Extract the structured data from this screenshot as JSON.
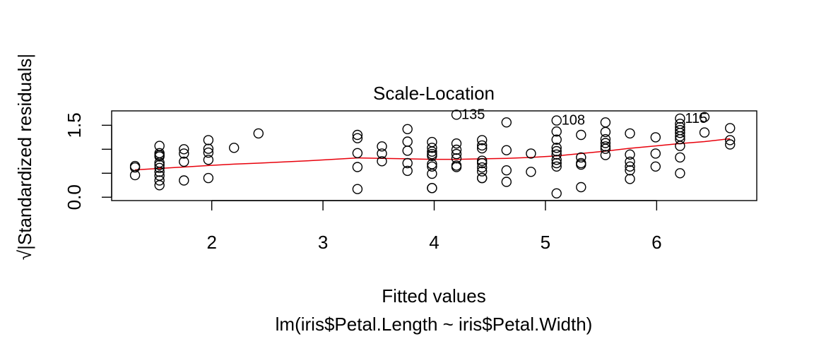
{
  "chart_data": {
    "type": "scatter",
    "title": "Scale-Location",
    "xlabel": "Fitted values",
    "subtitle": "lm(iris$Petal.Length ~ iris$Petal.Width)",
    "ylabel": "√|Standardized residuals|",
    "xlim": [
      1.1,
      6.9
    ],
    "ylim": [
      -0.07,
      1.8
    ],
    "xticks": [
      2,
      3,
      4,
      5,
      6
    ],
    "yticks": [
      0.0,
      0.5,
      1.0,
      1.5
    ],
    "ytick_labels": [
      "0.0",
      "",
      "",
      "1.5"
    ],
    "xtick_labels": [
      "2",
      "3",
      "4",
      "5",
      "6"
    ],
    "grid": false,
    "colors": {
      "points": "#000000",
      "smooth": "#e8000b"
    },
    "points": [
      [
        1.31,
        0.65
      ],
      [
        1.31,
        0.62
      ],
      [
        1.31,
        0.46
      ],
      [
        1.53,
        1.07
      ],
      [
        1.53,
        0.92
      ],
      [
        1.53,
        0.88
      ],
      [
        1.53,
        0.85
      ],
      [
        1.53,
        0.72
      ],
      [
        1.53,
        0.67
      ],
      [
        1.53,
        0.61
      ],
      [
        1.53,
        0.53
      ],
      [
        1.53,
        0.45
      ],
      [
        1.53,
        0.35
      ],
      [
        1.53,
        0.25
      ],
      [
        1.75,
        1.0
      ],
      [
        1.75,
        0.91
      ],
      [
        1.75,
        0.74
      ],
      [
        1.75,
        0.35
      ],
      [
        1.97,
        1.19
      ],
      [
        1.97,
        1.01
      ],
      [
        1.97,
        0.93
      ],
      [
        1.97,
        0.78
      ],
      [
        1.97,
        0.4
      ],
      [
        2.2,
        1.03
      ],
      [
        2.42,
        1.33
      ],
      [
        3.31,
        1.3
      ],
      [
        3.31,
        1.23
      ],
      [
        3.31,
        0.92
      ],
      [
        3.31,
        0.63
      ],
      [
        3.31,
        0.17
      ],
      [
        3.53,
        1.06
      ],
      [
        3.53,
        0.91
      ],
      [
        3.53,
        0.75
      ],
      [
        3.76,
        1.42
      ],
      [
        3.76,
        1.16
      ],
      [
        3.76,
        0.97
      ],
      [
        3.76,
        0.71
      ],
      [
        3.76,
        0.55
      ],
      [
        3.98,
        1.15
      ],
      [
        3.98,
        1.03
      ],
      [
        3.98,
        0.95
      ],
      [
        3.98,
        0.9
      ],
      [
        3.98,
        0.86
      ],
      [
        3.98,
        0.69
      ],
      [
        3.98,
        0.64
      ],
      [
        3.98,
        0.49
      ],
      [
        3.98,
        0.19
      ],
      [
        3.98,
        0.19
      ],
      [
        4.2,
        1.12
      ],
      [
        4.2,
        0.99
      ],
      [
        4.2,
        0.9
      ],
      [
        4.2,
        0.81
      ],
      [
        4.2,
        0.66
      ],
      [
        4.2,
        0.63
      ],
      [
        4.43,
        1.19
      ],
      [
        4.43,
        1.08
      ],
      [
        4.43,
        1.02
      ],
      [
        4.43,
        0.76
      ],
      [
        4.43,
        0.71
      ],
      [
        4.43,
        0.62
      ],
      [
        4.43,
        0.54
      ],
      [
        4.43,
        0.4
      ],
      [
        4.43,
        0.4
      ],
      [
        4.65,
        1.56
      ],
      [
        4.65,
        0.98
      ],
      [
        4.65,
        0.56
      ],
      [
        4.65,
        0.32
      ],
      [
        4.87,
        0.91
      ],
      [
        4.87,
        0.53
      ],
      [
        5.1,
        1.37
      ],
      [
        5.1,
        1.2
      ],
      [
        5.1,
        1.03
      ],
      [
        5.1,
        0.96
      ],
      [
        5.1,
        0.89
      ],
      [
        5.1,
        0.78
      ],
      [
        5.1,
        0.71
      ],
      [
        5.1,
        0.64
      ],
      [
        5.1,
        0.08
      ],
      [
        5.32,
        1.3
      ],
      [
        5.32,
        0.83
      ],
      [
        5.32,
        0.71
      ],
      [
        5.32,
        0.68
      ],
      [
        5.32,
        0.21
      ],
      [
        5.54,
        1.56
      ],
      [
        5.54,
        1.36
      ],
      [
        5.54,
        1.21
      ],
      [
        5.54,
        1.13
      ],
      [
        5.54,
        1.06
      ],
      [
        5.54,
        1.01
      ],
      [
        5.54,
        0.88
      ],
      [
        5.76,
        1.33
      ],
      [
        5.76,
        0.89
      ],
      [
        5.76,
        0.74
      ],
      [
        5.76,
        0.64
      ],
      [
        5.76,
        0.56
      ],
      [
        5.76,
        0.38
      ],
      [
        5.99,
        1.25
      ],
      [
        5.99,
        0.91
      ],
      [
        5.99,
        0.64
      ],
      [
        6.21,
        1.53
      ],
      [
        6.21,
        1.46
      ],
      [
        6.21,
        1.4
      ],
      [
        6.21,
        1.34
      ],
      [
        6.21,
        1.27
      ],
      [
        6.21,
        1.21
      ],
      [
        6.21,
        1.07
      ],
      [
        6.21,
        0.83
      ],
      [
        6.21,
        0.5
      ],
      [
        6.43,
        1.67
      ],
      [
        6.43,
        1.35
      ],
      [
        6.66,
        1.44
      ],
      [
        6.66,
        1.19
      ],
      [
        6.66,
        1.1
      ]
    ],
    "labeled_points": [
      {
        "label": "135",
        "x": 4.2,
        "y": 1.72
      },
      {
        "label": "108",
        "x": 5.1,
        "y": 1.6
      },
      {
        "label": "115",
        "x": 6.21,
        "y": 1.64
      }
    ],
    "smooth_line": {
      "x": [
        1.31,
        1.53,
        1.75,
        1.97,
        2.2,
        2.42,
        2.87,
        3.31,
        3.53,
        3.76,
        3.98,
        4.2,
        4.43,
        4.65,
        4.87,
        5.1,
        5.32,
        5.54,
        5.76,
        5.99,
        6.21,
        6.43,
        6.66
      ],
      "y": [
        0.57,
        0.6,
        0.63,
        0.66,
        0.69,
        0.71,
        0.76,
        0.82,
        0.81,
        0.8,
        0.79,
        0.79,
        0.8,
        0.81,
        0.83,
        0.86,
        0.91,
        0.96,
        1.02,
        1.07,
        1.12,
        1.16,
        1.22
      ]
    }
  }
}
